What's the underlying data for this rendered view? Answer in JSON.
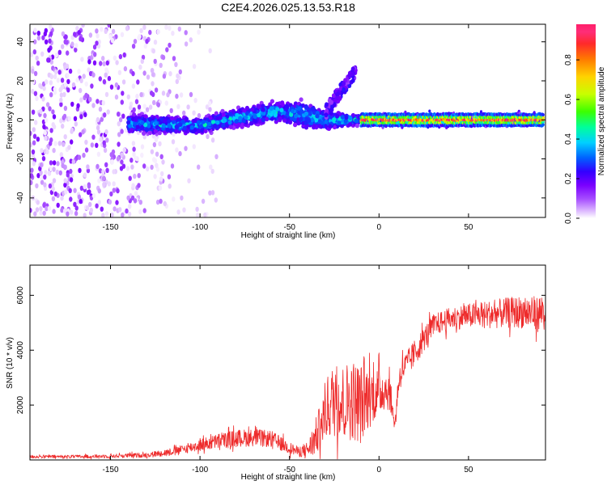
{
  "title": "C2E4.2026.025.13.53.R18",
  "chart_data": [
    {
      "type": "heatmap",
      "xlabel": "Height of straight line (km)",
      "ylabel": "Frequency (Hz)",
      "xlim": [
        -195,
        93
      ],
      "ylim": [
        -50,
        49
      ],
      "x_ticks": [
        -150,
        -100,
        -50,
        0,
        50
      ],
      "y_ticks": [
        -40,
        -20,
        0,
        20,
        40
      ],
      "colorbar": {
        "label": "Normalized spectral amplitude",
        "range": [
          0,
          0.98
        ],
        "ticks": [
          0,
          0.2,
          0.4,
          0.6,
          0.8
        ],
        "tick_labels": [
          "0.0",
          "0.2",
          "0.4",
          "0.6",
          "0.8"
        ],
        "colormap": [
          "#ffffff",
          "#e4c8ff",
          "#a64dff",
          "#7a00ff",
          "#3300ff",
          "#0060ff",
          "#00d0ff",
          "#00ff9a",
          "#3cff00",
          "#c8ff00",
          "#ffd200",
          "#ff7a00",
          "#ff2a2a",
          "#ff2d78",
          "#ff1f6a"
        ]
      },
      "features": [
        {
          "name": "noise",
          "x_range": [
            -195,
            -110
          ],
          "freq_range": [
            -49,
            49
          ],
          "amplitude": [
            0.0,
            0.22
          ]
        },
        {
          "name": "band",
          "x_range": [
            -140,
            -10
          ],
          "center_freq": [
            [
              -140,
              -2
            ],
            [
              -100,
              -3
            ],
            [
              -80,
              1
            ],
            [
              -60,
              4
            ],
            [
              -45,
              3
            ],
            [
              -30,
              0
            ],
            [
              -10,
              0
            ]
          ],
          "halfwidth": [
            [
              -140,
              6
            ],
            [
              -100,
              5
            ],
            [
              -60,
              7
            ],
            [
              -40,
              9
            ],
            [
              -10,
              3
            ]
          ],
          "amplitude": [
            0.2,
            0.5
          ]
        },
        {
          "name": "branch",
          "x_range": [
            -30,
            -13
          ],
          "center_freq": [
            [
              -30,
              4
            ],
            [
              -13,
              25
            ]
          ],
          "amplitude": [
            0.15,
            0.3
          ]
        },
        {
          "name": "line",
          "x_range": [
            -10,
            92
          ],
          "center_freq": 0,
          "halfwidth": 2.5,
          "amplitude": [
            0.6,
            0.95
          ]
        }
      ]
    },
    {
      "type": "line",
      "xlabel": "Height of straight line (km)",
      "ylabel": "SNR (10 * v/v)",
      "xlim": [
        -195,
        93
      ],
      "ylim": [
        0,
        7100
      ],
      "x_ticks": [
        -150,
        -100,
        -50,
        0,
        50
      ],
      "y_ticks": [
        2000,
        4000,
        6000
      ],
      "color": "#ee2b2b",
      "series": [
        {
          "x": [
            -195,
            -170,
            -150,
            -130,
            -120,
            -110,
            -100,
            -90,
            -80,
            -70,
            -60,
            -50,
            -45,
            -40,
            -37,
            -35,
            -32,
            -30,
            -25,
            -20,
            -15,
            -10,
            -6,
            -3,
            0,
            3,
            6,
            8,
            9,
            10,
            11,
            13,
            16,
            20,
            25,
            30,
            40,
            50,
            60,
            70,
            80,
            85,
            88,
            92
          ],
          "y": [
            120,
            120,
            140,
            180,
            260,
            380,
            540,
            680,
            780,
            820,
            760,
            440,
            300,
            380,
            600,
            900,
            1300,
            1800,
            2200,
            2100,
            2200,
            2050,
            2300,
            2400,
            2450,
            2600,
            2500,
            1600,
            1300,
            2100,
            2900,
            3300,
            3500,
            3900,
            4400,
            4900,
            5150,
            5250,
            5300,
            5350,
            5400,
            5350,
            5300,
            5450
          ],
          "noise": [
            60,
            60,
            70,
            90,
            120,
            160,
            220,
            280,
            320,
            320,
            300,
            220,
            180,
            300,
            500,
            700,
            900,
            1100,
            1400,
            1400,
            1500,
            1500,
            1200,
            1000,
            900,
            800,
            700,
            300,
            300,
            500,
            500,
            500,
            500,
            500,
            450,
            400,
            420,
            450,
            500,
            550,
            600,
            650,
            650,
            700
          ]
        }
      ]
    }
  ]
}
